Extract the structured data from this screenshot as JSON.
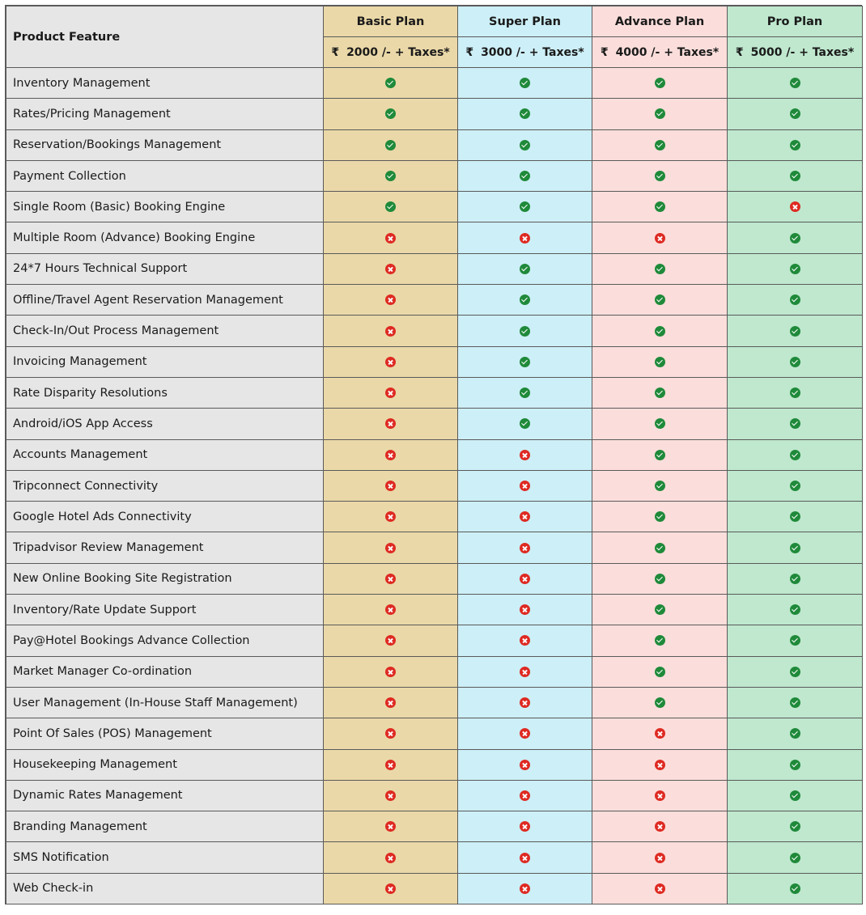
{
  "header": {
    "feature_label": "Product Feature",
    "plans": [
      {
        "name": "Basic Plan",
        "currency": "₹",
        "price": "2000 /- + Taxes*"
      },
      {
        "name": "Super Plan",
        "currency": "₹",
        "price": "3000 /- + Taxes*"
      },
      {
        "name": "Advance Plan",
        "currency": "₹",
        "price": "4000 /- + Taxes*"
      },
      {
        "name": "Pro Plan",
        "currency": "₹",
        "price": "5000 /- + Taxes*"
      }
    ]
  },
  "colors": {
    "basic": "#ead8a8",
    "super": "#cdeff7",
    "advance": "#fbdedb",
    "pro": "#bfe8ce",
    "feature_column": "#e6e6e6",
    "yes_icon": "#1f8a3a",
    "no_icon": "#de2a22"
  },
  "icons": {
    "yes": "check-circle-icon",
    "no": "cross-circle-icon"
  },
  "rows": [
    {
      "feature": "Inventory Management",
      "marks": [
        true,
        true,
        true,
        true
      ]
    },
    {
      "feature": "Rates/Pricing Management",
      "marks": [
        true,
        true,
        true,
        true
      ]
    },
    {
      "feature": "Reservation/Bookings Management",
      "marks": [
        true,
        true,
        true,
        true
      ]
    },
    {
      "feature": "Payment Collection",
      "marks": [
        true,
        true,
        true,
        true
      ]
    },
    {
      "feature": "Single Room (Basic) Booking Engine",
      "marks": [
        true,
        true,
        true,
        false
      ]
    },
    {
      "feature": "Multiple Room (Advance) Booking Engine",
      "marks": [
        false,
        false,
        false,
        true
      ]
    },
    {
      "feature": "24*7 Hours Technical Support",
      "marks": [
        false,
        true,
        true,
        true
      ]
    },
    {
      "feature": "Offline/Travel Agent Reservation Management",
      "marks": [
        false,
        true,
        true,
        true
      ]
    },
    {
      "feature": "Check-In/Out Process Management",
      "marks": [
        false,
        true,
        true,
        true
      ]
    },
    {
      "feature": "Invoicing Management",
      "marks": [
        false,
        true,
        true,
        true
      ]
    },
    {
      "feature": "Rate Disparity Resolutions",
      "marks": [
        false,
        true,
        true,
        true
      ]
    },
    {
      "feature": "Android/iOS App Access",
      "marks": [
        false,
        true,
        true,
        true
      ]
    },
    {
      "feature": "Accounts Management",
      "marks": [
        false,
        false,
        true,
        true
      ]
    },
    {
      "feature": "Tripconnect Connectivity",
      "marks": [
        false,
        false,
        true,
        true
      ]
    },
    {
      "feature": "Google Hotel Ads Connectivity",
      "marks": [
        false,
        false,
        true,
        true
      ]
    },
    {
      "feature": "Tripadvisor Review Management",
      "marks": [
        false,
        false,
        true,
        true
      ]
    },
    {
      "feature": "New Online Booking Site Registration",
      "marks": [
        false,
        false,
        true,
        true
      ]
    },
    {
      "feature": "Inventory/Rate Update Support",
      "marks": [
        false,
        false,
        true,
        true
      ]
    },
    {
      "feature": "Pay@Hotel Bookings Advance Collection",
      "marks": [
        false,
        false,
        true,
        true
      ]
    },
    {
      "feature": "Market Manager Co-ordination",
      "marks": [
        false,
        false,
        true,
        true
      ]
    },
    {
      "feature": "User Management (In-House Staff Management)",
      "marks": [
        false,
        false,
        true,
        true
      ]
    },
    {
      "feature": "Point Of Sales (POS) Management",
      "marks": [
        false,
        false,
        false,
        true
      ]
    },
    {
      "feature": "Housekeeping Management",
      "marks": [
        false,
        false,
        false,
        true
      ]
    },
    {
      "feature": "Dynamic Rates Management",
      "marks": [
        false,
        false,
        false,
        true
      ]
    },
    {
      "feature": "Branding Management",
      "marks": [
        false,
        false,
        false,
        true
      ]
    },
    {
      "feature": "SMS Notification",
      "marks": [
        false,
        false,
        false,
        true
      ]
    },
    {
      "feature": "Web Check-in",
      "marks": [
        false,
        false,
        false,
        true
      ]
    }
  ]
}
